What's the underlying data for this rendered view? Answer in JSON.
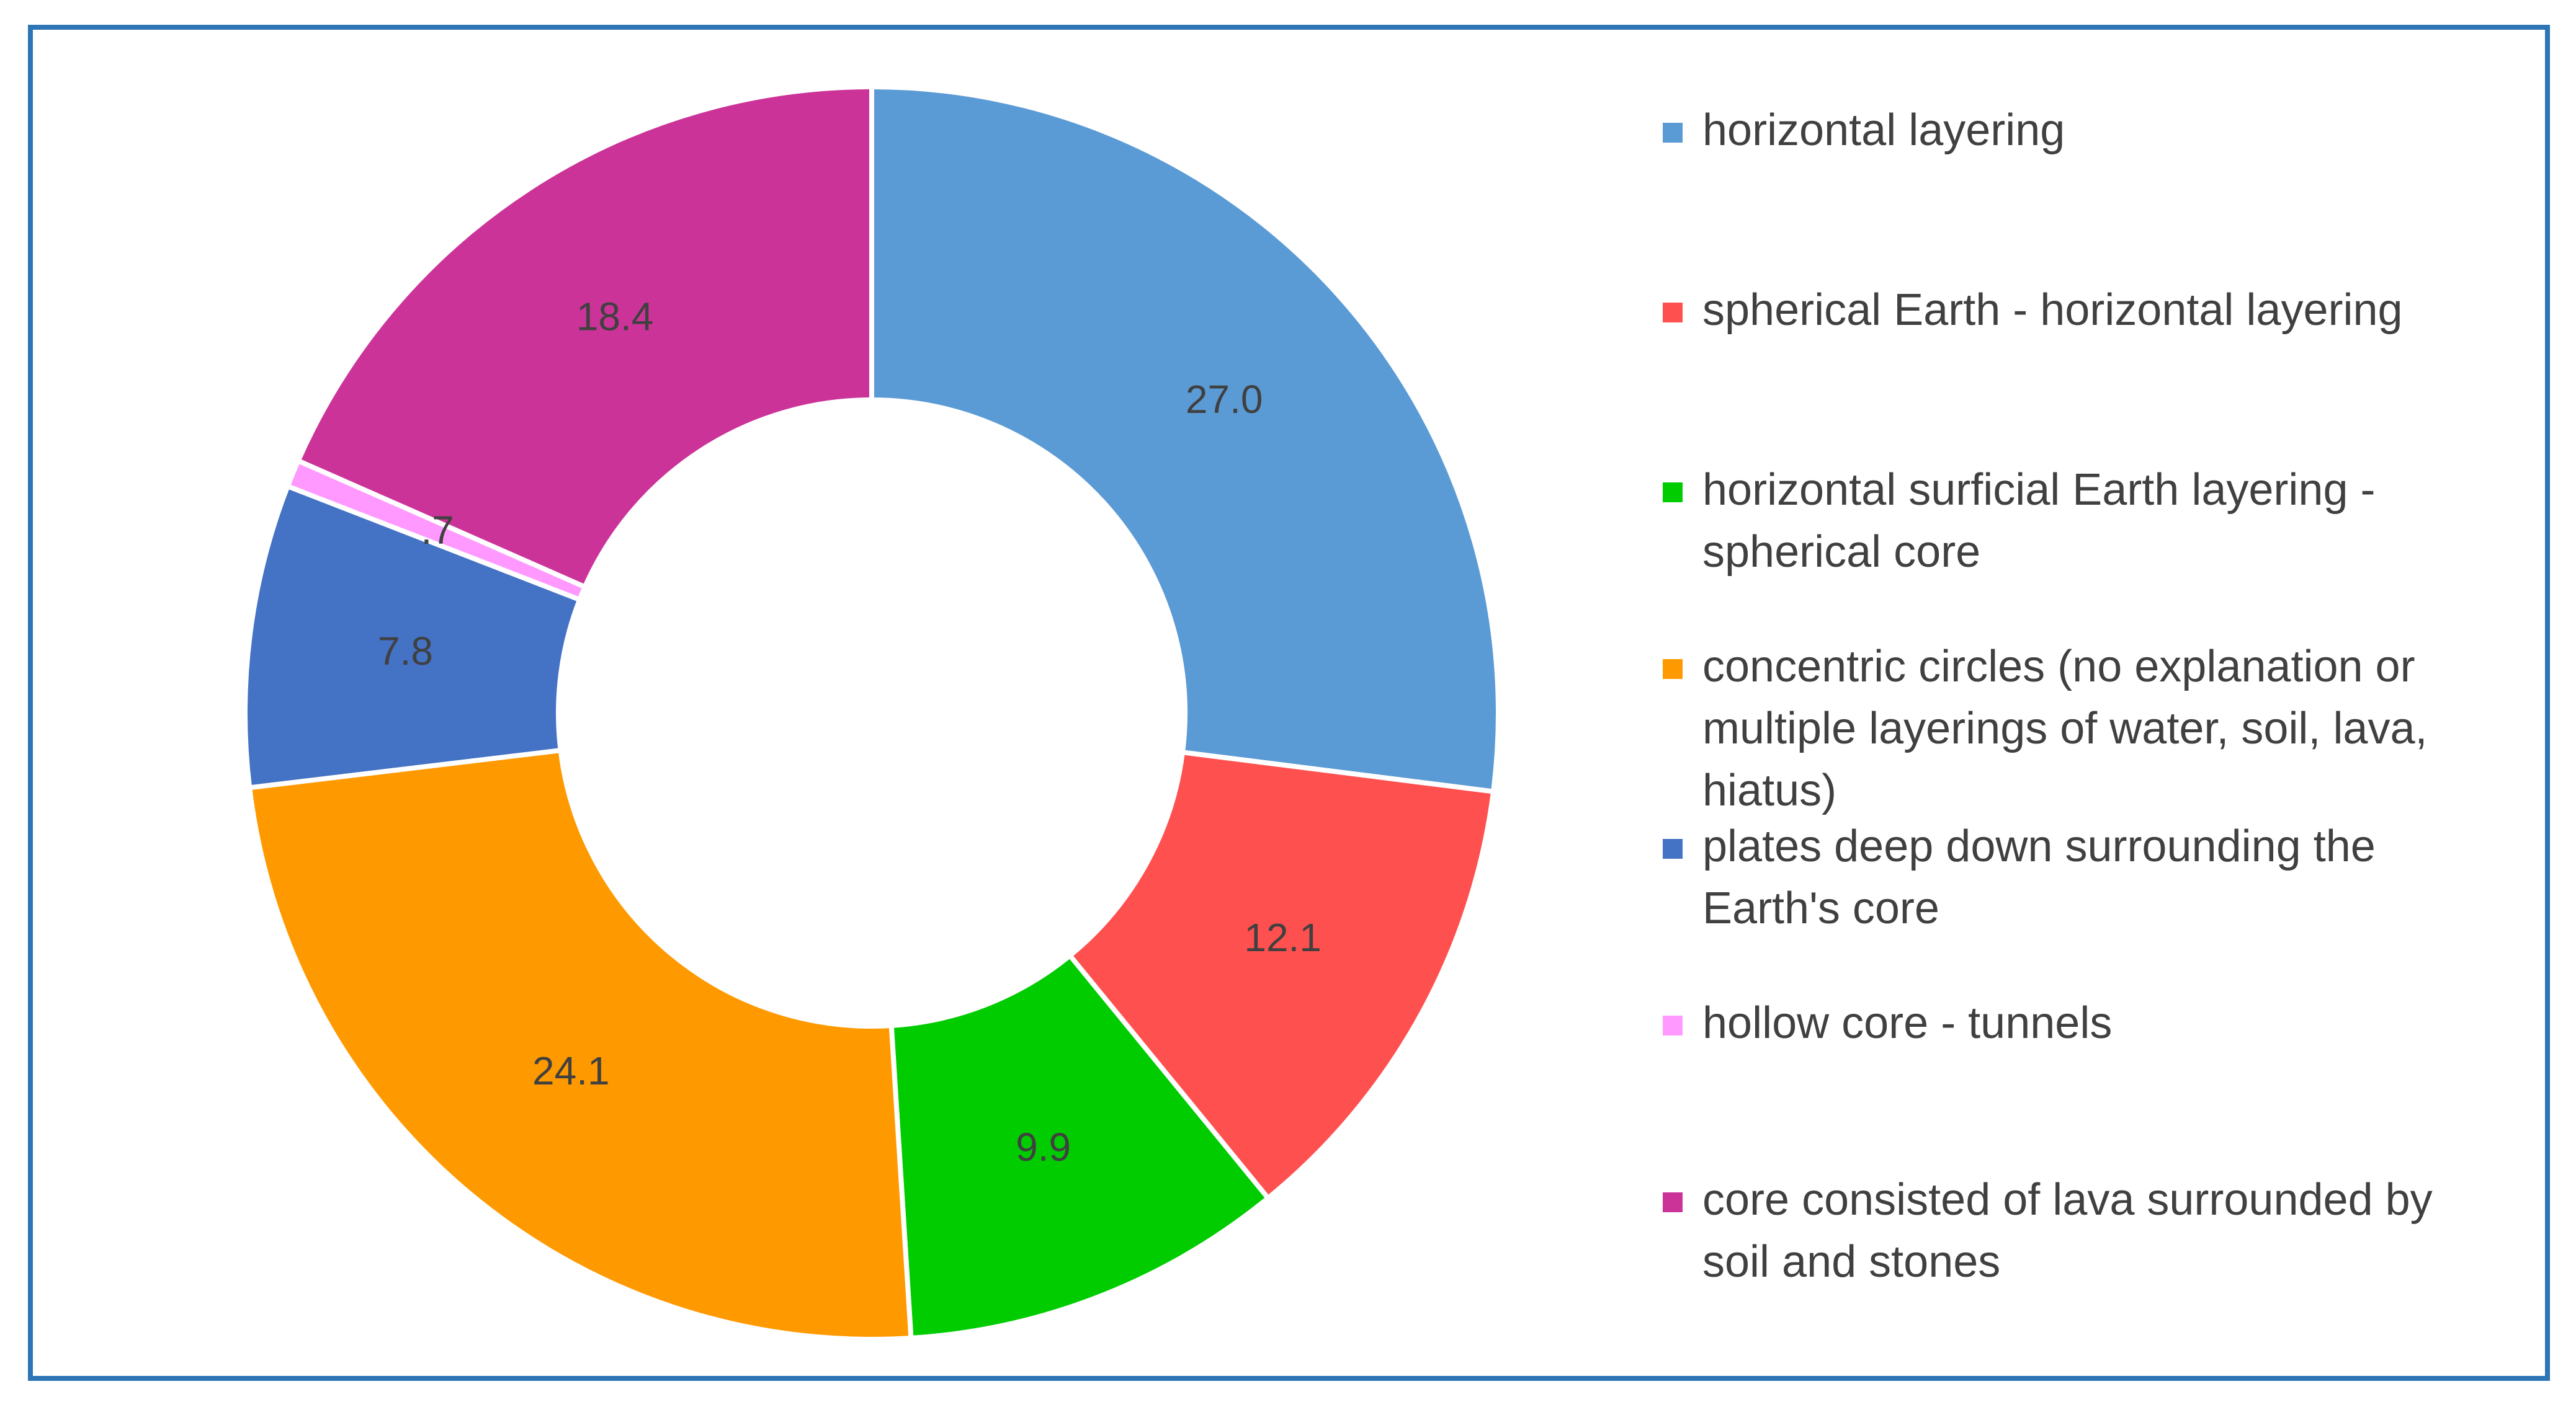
{
  "chart_data": {
    "type": "pie",
    "variant": "donut",
    "categories": [
      "horizontal layering",
      "spherical Earth - horizontal layering",
      "horizontal surficial Earth layering - spherical core",
      "concentric circles (no explanation or multiple layerings of water, soil, lava, hiatus)",
      "plates deep down surrounding the Earth's core",
      "hollow core - tunnels",
      "core consisted of lava surrounded by soil and stones"
    ],
    "values": [
      27.0,
      12.1,
      9.9,
      24.1,
      7.8,
      0.7,
      18.4
    ],
    "data_labels": [
      "27.0",
      "12.1",
      "9.9",
      "24.1",
      "7.8",
      ".7",
      "18.4"
    ],
    "colors": [
      "#5B9BD5",
      "#FF5050",
      "#00CC00",
      "#FF9900",
      "#4472C4",
      "#FF99FF",
      "#CC3399"
    ],
    "legend_position": "right",
    "title": ""
  },
  "frame_color": "#2E75B6"
}
